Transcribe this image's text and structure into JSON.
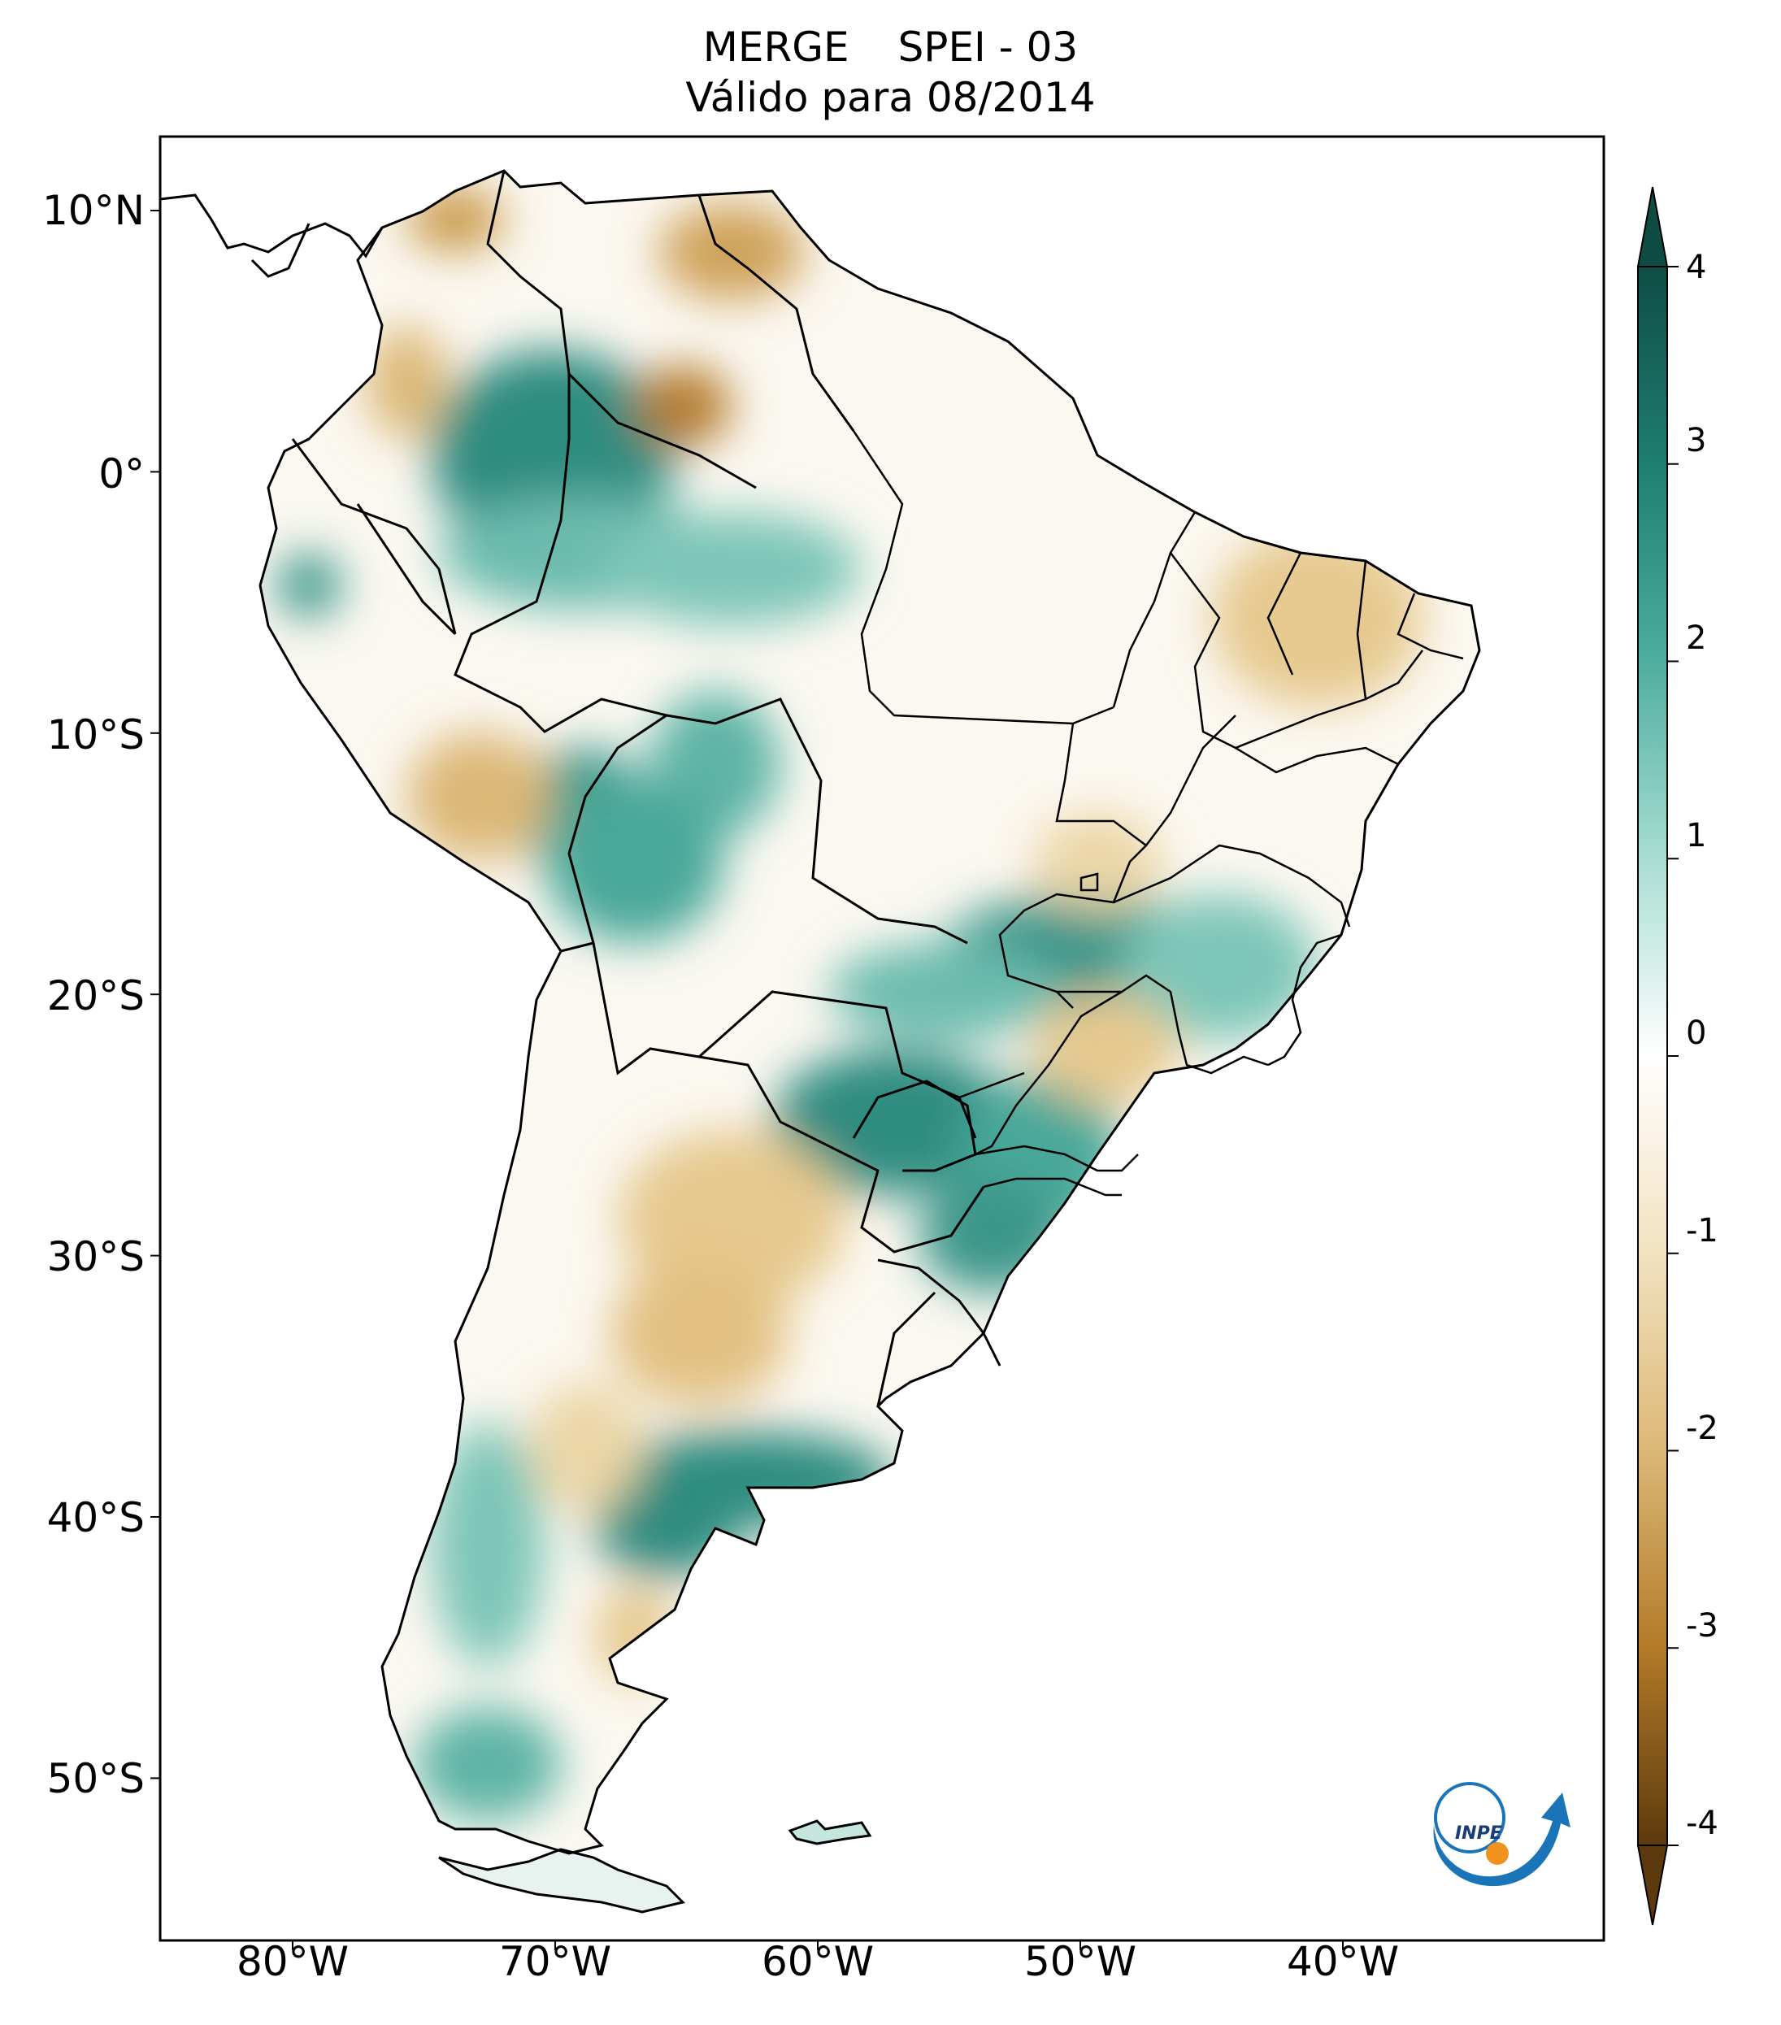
{
  "figure": {
    "title_line1_a": "MERGE",
    "title_line1_b": "SPEI - 03",
    "title_line2": "Válido para 08/2014",
    "logo_text": "INPE"
  },
  "map": {
    "region": "South America",
    "lon_range": [
      -85,
      -30
    ],
    "lat_range": [
      -57,
      12.5
    ],
    "lat_ticks": [
      {
        "value": 10,
        "label": "10°N"
      },
      {
        "value": 0,
        "label": "0°"
      },
      {
        "value": -10,
        "label": "10°S"
      },
      {
        "value": -20,
        "label": "20°S"
      },
      {
        "value": -30,
        "label": "30°S"
      },
      {
        "value": -40,
        "label": "40°S"
      },
      {
        "value": -50,
        "label": "50°S"
      }
    ],
    "lon_ticks": [
      {
        "value": -80,
        "label": "80°W"
      },
      {
        "value": -70,
        "label": "70°W"
      },
      {
        "value": -60,
        "label": "60°W"
      },
      {
        "value": -50,
        "label": "50°W"
      },
      {
        "value": -40,
        "label": "40°W"
      }
    ]
  },
  "colorbar": {
    "min": -4,
    "max": 4,
    "ticks": [
      {
        "value": 4,
        "label": "4"
      },
      {
        "value": 3,
        "label": "3"
      },
      {
        "value": 2,
        "label": "2"
      },
      {
        "value": 1,
        "label": "1"
      },
      {
        "value": 0,
        "label": "0"
      },
      {
        "value": -1,
        "label": "-1"
      },
      {
        "value": -2,
        "label": "-2"
      },
      {
        "value": -3,
        "label": "-3"
      },
      {
        "value": -4,
        "label": "-4"
      }
    ],
    "colors": {
      "wet_extreme": "#0f4d44",
      "wet_strong": "#1f7d72",
      "wet_moderate": "#4fae9f",
      "wet_light": "#a8ddd2",
      "neutral": "#ffffff",
      "dry_light": "#f2e2c0",
      "dry_moderate": "#dcb877",
      "dry_strong": "#b37a29",
      "dry_extreme": "#5c3a0d"
    }
  }
}
